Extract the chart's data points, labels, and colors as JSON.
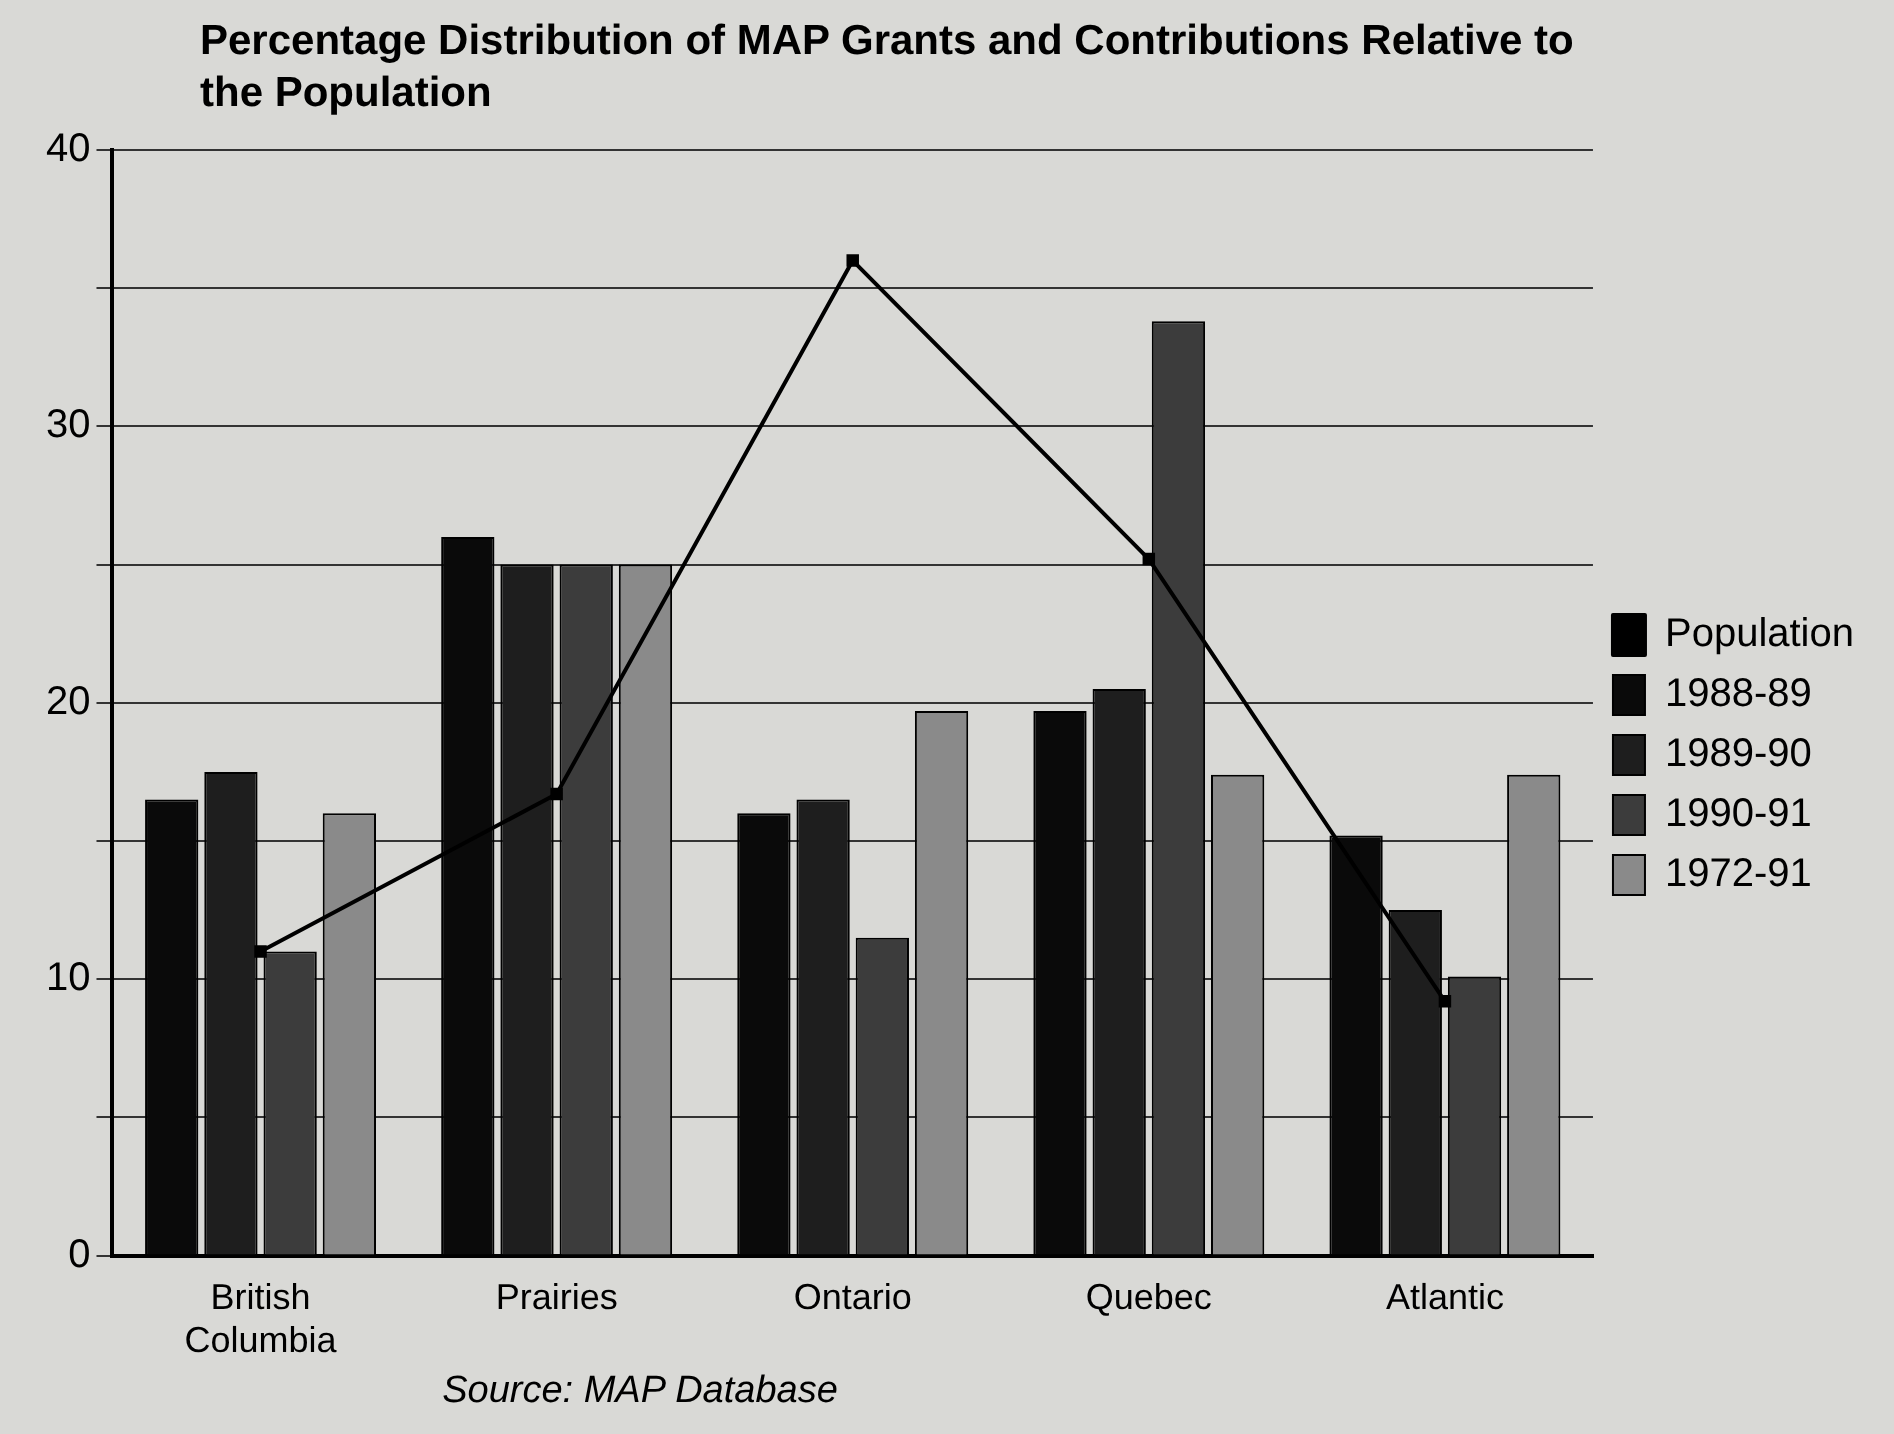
{
  "chart_data": {
    "type": "bar",
    "title": "Percentage Distribution of MAP Grants and Contributions Relative to the Population",
    "categories": [
      "British Columbia",
      "Prairies",
      "Ontario",
      "Quebec",
      "Atlantic"
    ],
    "series": [
      {
        "name": "1988-89",
        "color": "#0a0a0a",
        "values": [
          16.5,
          26,
          16,
          19.7,
          15.2
        ]
      },
      {
        "name": "1989-90",
        "color": "#1e1e1e",
        "values": [
          17.5,
          25,
          16.5,
          20.5,
          12.5
        ]
      },
      {
        "name": "1990-91",
        "color": "#3c3c3c",
        "values": [
          11,
          25,
          11.5,
          33.8,
          10.1
        ]
      },
      {
        "name": "1972-91",
        "color": "#8a8a8a",
        "values": [
          16,
          25,
          19.7,
          17.4,
          17.4
        ]
      },
      {
        "name": "Population",
        "type": "line",
        "color": "#000000",
        "values": [
          11,
          16.7,
          36,
          25.2,
          9.2
        ]
      }
    ],
    "ylim": [
      0,
      40
    ],
    "yticks": [
      0,
      {
        "value": 5,
        "label": null
      },
      10,
      {
        "value": 15,
        "label": null
      },
      20,
      {
        "value": 25,
        "label": null
      },
      30,
      {
        "value": 35,
        "label": null
      },
      40
    ],
    "grid": "y",
    "legend": "right",
    "marker": "square",
    "line_style": "solid",
    "annotations": [
      "Source: MAP Database"
    ]
  }
}
